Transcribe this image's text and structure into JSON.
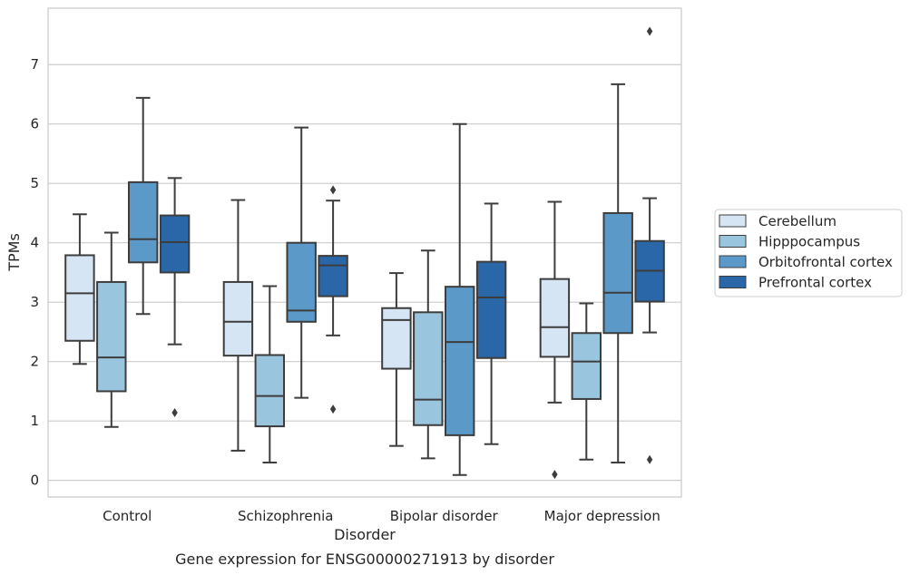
{
  "chart_data": {
    "type": "box",
    "title": "Gene expression for ENSG00000271913 by disorder",
    "xlabel": "Disorder",
    "ylabel": "TPMs",
    "ylim": [
      -0.28,
      7.95
    ],
    "yticks": [
      0,
      1,
      2,
      3,
      4,
      5,
      6,
      7
    ],
    "grid": "horizontal",
    "legend_position": "right",
    "categories": [
      "Control",
      "Schizophrenia",
      "Bipolar disorder",
      "Major depression"
    ],
    "series": [
      {
        "name": "Cerebellum",
        "color": "#d6e5f4",
        "boxes": [
          {
            "whislo": 1.96,
            "q1": 2.35,
            "med": 3.15,
            "q3": 3.79,
            "whishi": 4.48,
            "fliers": []
          },
          {
            "whislo": 0.5,
            "q1": 2.1,
            "med": 2.67,
            "q3": 3.34,
            "whishi": 4.72,
            "fliers": []
          },
          {
            "whislo": 0.58,
            "q1": 1.88,
            "med": 2.7,
            "q3": 2.9,
            "whishi": 3.49,
            "fliers": []
          },
          {
            "whislo": 1.31,
            "q1": 2.08,
            "med": 2.58,
            "q3": 3.39,
            "whishi": 4.69,
            "fliers": [
              0.1
            ]
          }
        ]
      },
      {
        "name": "Hipppocampus",
        "color": "#9ac5de",
        "boxes": [
          {
            "whislo": 0.9,
            "q1": 1.5,
            "med": 2.07,
            "q3": 3.34,
            "whishi": 4.17,
            "fliers": []
          },
          {
            "whislo": 0.3,
            "q1": 0.91,
            "med": 1.42,
            "q3": 2.11,
            "whishi": 3.27,
            "fliers": []
          },
          {
            "whislo": 0.37,
            "q1": 0.93,
            "med": 1.36,
            "q3": 2.83,
            "whishi": 3.87,
            "fliers": []
          },
          {
            "whislo": 0.35,
            "q1": 1.37,
            "med": 2.0,
            "q3": 2.48,
            "whishi": 2.98,
            "fliers": []
          }
        ]
      },
      {
        "name": "Orbitofrontal cortex",
        "color": "#5b99c8",
        "boxes": [
          {
            "whislo": 2.8,
            "q1": 3.67,
            "med": 4.06,
            "q3": 5.02,
            "whishi": 6.44,
            "fliers": []
          },
          {
            "whislo": 1.39,
            "q1": 2.67,
            "med": 2.86,
            "q3": 4.0,
            "whishi": 5.94,
            "fliers": []
          },
          {
            "whislo": 0.09,
            "q1": 0.76,
            "med": 2.33,
            "q3": 3.26,
            "whishi": 6.0,
            "fliers": []
          },
          {
            "whislo": 0.3,
            "q1": 2.48,
            "med": 3.16,
            "q3": 4.5,
            "whishi": 6.67,
            "fliers": []
          }
        ]
      },
      {
        "name": "Prefrontal cortex",
        "color": "#2a67a8",
        "boxes": [
          {
            "whislo": 2.29,
            "q1": 3.5,
            "med": 4.01,
            "q3": 4.46,
            "whishi": 5.09,
            "fliers": [
              1.14
            ]
          },
          {
            "whislo": 2.44,
            "q1": 3.1,
            "med": 3.62,
            "q3": 3.78,
            "whishi": 4.71,
            "fliers": [
              1.2,
              4.89
            ]
          },
          {
            "whislo": 0.61,
            "q1": 2.06,
            "med": 3.08,
            "q3": 3.68,
            "whishi": 4.66,
            "fliers": []
          },
          {
            "whislo": 2.49,
            "q1": 3.01,
            "med": 3.53,
            "q3": 4.03,
            "whishi": 4.75,
            "fliers": [
              0.35,
              7.56
            ]
          }
        ]
      }
    ]
  }
}
